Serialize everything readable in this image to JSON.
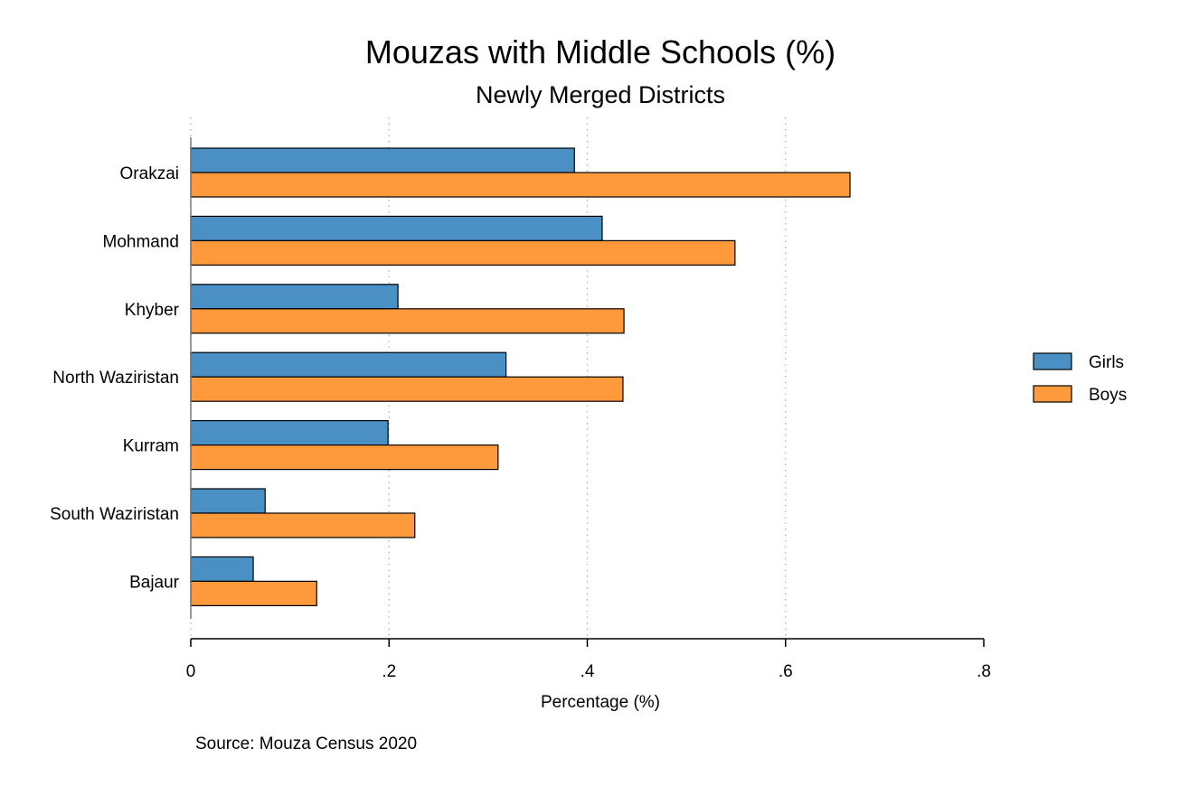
{
  "chart_data": {
    "type": "bar",
    "orientation": "horizontal",
    "title": "Mouzas with Middle Schools (%)",
    "subtitle": "Newly Merged Districts",
    "xlabel": "Percentage (%)",
    "ylabel": "",
    "xlim": [
      0,
      0.8
    ],
    "x_ticks": [
      {
        "value": 0,
        "label": "0"
      },
      {
        "value": 0.2,
        "label": ".2"
      },
      {
        "value": 0.4,
        "label": ".4"
      },
      {
        "value": 0.6,
        "label": ".6"
      },
      {
        "value": 0.8,
        "label": ".8"
      }
    ],
    "grid": "vertical dotted at ticks",
    "legend_position": "right",
    "categories": [
      "Orakzai",
      "Mohmand",
      "Khyber",
      "North Waziristan",
      "Kurram",
      "South Waziristan",
      "Bajaur"
    ],
    "series": [
      {
        "name": "Girls",
        "color": "#4a90c4",
        "values": [
          0.387,
          0.415,
          0.209,
          0.318,
          0.199,
          0.075,
          0.063
        ]
      },
      {
        "name": "Boys",
        "color": "#ff9a3c",
        "values": [
          0.665,
          0.549,
          0.437,
          0.436,
          0.31,
          0.226,
          0.127
        ]
      }
    ],
    "note": "Source: Mouza Census 2020"
  }
}
